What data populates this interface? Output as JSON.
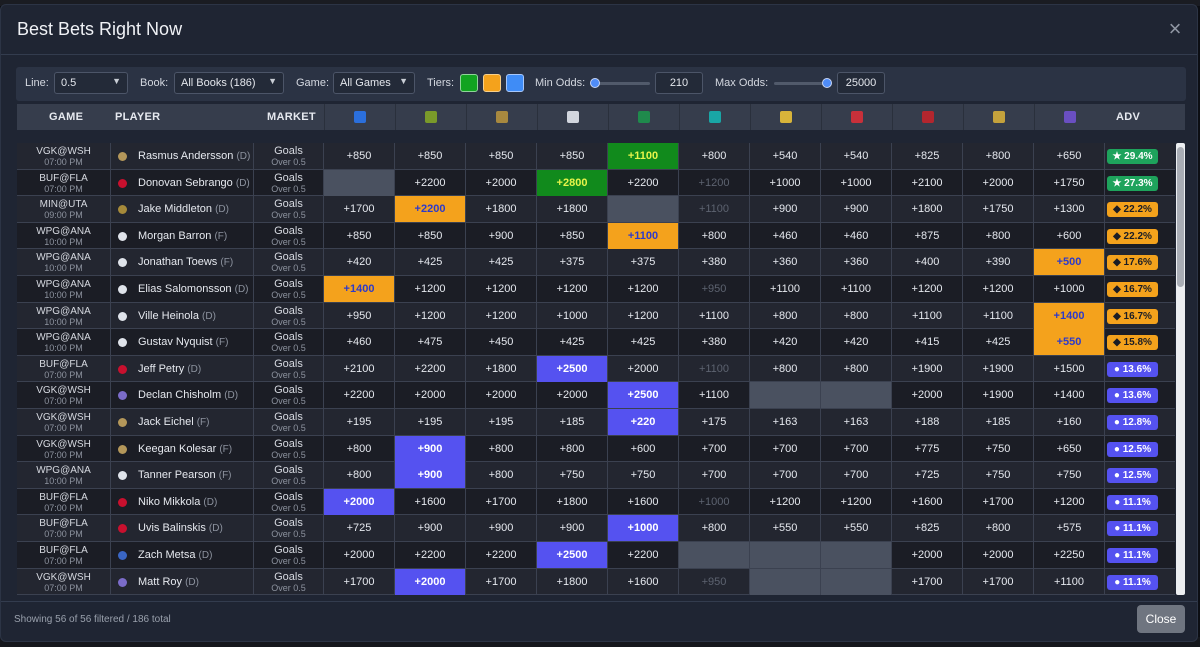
{
  "modal": {
    "title": "Best Bets Right Now",
    "close_icon": "close-icon",
    "status": "Showing 56 of 56 filtered / 186 total",
    "close_label": "Close"
  },
  "filters": {
    "line_label": "Line:",
    "line_value": "0.5",
    "book_label": "Book:",
    "book_value": "All Books (186)",
    "game_label": "Game:",
    "game_value": "All Games",
    "tiers_label": "Tiers:",
    "tiers": [
      {
        "name": "green-tier",
        "color": "#11a321"
      },
      {
        "name": "orange-tier",
        "color": "#f4a21c"
      },
      {
        "name": "blue-tier",
        "color": "#3f8cf6"
      }
    ],
    "min_odds_label": "Min Odds:",
    "min_odds_value": "210",
    "min_slider_level": 0,
    "max_odds_label": "Max Odds:",
    "max_odds_value": "25000",
    "max_slider_level": 1
  },
  "columns": {
    "game": "GAME",
    "player": "PLAYER",
    "market": "MARKET",
    "adv": "ADV",
    "books": [
      {
        "icon": "fanduel-icon",
        "color": "#2b6fdc"
      },
      {
        "icon": "draftkings-icon",
        "color": "#7a9a2a"
      },
      {
        "icon": "betmgm-icon",
        "color": "#a8893f"
      },
      {
        "icon": "caesars-icon",
        "color": "#d2d6de"
      },
      {
        "icon": "bet365-icon",
        "color": "#1f8a4c"
      },
      {
        "icon": "espnbet-icon",
        "color": "#19a6a6"
      },
      {
        "icon": "betrivers-icon",
        "color": "#d8b43a"
      },
      {
        "icon": "fanatics-icon",
        "color": "#c8303a"
      },
      {
        "icon": "betway-icon",
        "color": "#b3262e"
      },
      {
        "icon": "hardrock-icon",
        "color": "#c4a23c"
      },
      {
        "icon": "pointsbet-icon",
        "color": "#6a4fc1"
      }
    ]
  },
  "rows": [
    {
      "game": "VGK@WSH",
      "time": "07:00 PM",
      "team_color": "#b4975a",
      "player": "Rasmus Andersson",
      "pos": "(D)",
      "market": "Goals",
      "line": "Over 0.5",
      "odds": [
        "+850",
        "+850",
        "+850",
        "+850",
        "+1100",
        "+800",
        "+540",
        "+540",
        "+825",
        "+800",
        "+650"
      ],
      "styles": [
        "",
        "",
        "",
        "",
        "green",
        "",
        "",
        "",
        "",
        "",
        ""
      ],
      "adv": "★ 29.4%",
      "tier": "green"
    },
    {
      "game": "BUF@FLA",
      "time": "07:00 PM",
      "team_color": "#c8102e",
      "player": "Donovan Sebrango",
      "pos": "(D)",
      "market": "Goals",
      "line": "Over 0.5",
      "odds": [
        "",
        "+2200",
        "+2000",
        "+2800",
        "+2200",
        "+1200",
        "+1000",
        "+1000",
        "+2100",
        "+2000",
        "+1750"
      ],
      "styles": [
        "empty",
        "",
        "",
        "green",
        "",
        "dim",
        "",
        "",
        "",
        "",
        ""
      ],
      "adv": "★ 27.3%",
      "tier": "green"
    },
    {
      "game": "MIN@UTA",
      "time": "09:00 PM",
      "team_color": "#a68a3a",
      "player": "Jake Middleton",
      "pos": "(D)",
      "market": "Goals",
      "line": "Over 0.5",
      "odds": [
        "+1700",
        "+2200",
        "+1800",
        "+1800",
        "",
        "+1100",
        "+900",
        "+900",
        "+1800",
        "+1750",
        "+1300"
      ],
      "styles": [
        "",
        "orange",
        "",
        "",
        "empty",
        "dim",
        "",
        "",
        "",
        "",
        ""
      ],
      "adv": "◆ 22.2%",
      "tier": "orange"
    },
    {
      "game": "WPG@ANA",
      "time": "10:00 PM",
      "team_color": "#dfe3ea",
      "player": "Morgan Barron",
      "pos": "(F)",
      "market": "Goals",
      "line": "Over 0.5",
      "odds": [
        "+850",
        "+850",
        "+900",
        "+850",
        "+1100",
        "+800",
        "+460",
        "+460",
        "+875",
        "+800",
        "+600"
      ],
      "styles": [
        "",
        "",
        "",
        "",
        "orange",
        "",
        "",
        "",
        "",
        "",
        ""
      ],
      "adv": "◆ 22.2%",
      "tier": "orange"
    },
    {
      "game": "WPG@ANA",
      "time": "10:00 PM",
      "team_color": "#dfe3ea",
      "player": "Jonathan Toews",
      "pos": "(F)",
      "market": "Goals",
      "line": "Over 0.5",
      "odds": [
        "+420",
        "+425",
        "+425",
        "+375",
        "+375",
        "+380",
        "+360",
        "+360",
        "+400",
        "+390",
        "+500"
      ],
      "styles": [
        "",
        "",
        "",
        "",
        "",
        "",
        "",
        "",
        "",
        "",
        "orange"
      ],
      "adv": "◆ 17.6%",
      "tier": "orange"
    },
    {
      "game": "WPG@ANA",
      "time": "10:00 PM",
      "team_color": "#dfe3ea",
      "player": "Elias Salomonsson",
      "pos": "(D)",
      "market": "Goals",
      "line": "Over 0.5",
      "odds": [
        "+1400",
        "+1200",
        "+1200",
        "+1200",
        "+1200",
        "+950",
        "+1100",
        "+1100",
        "+1200",
        "+1200",
        "+1000"
      ],
      "styles": [
        "orange",
        "",
        "",
        "",
        "",
        "dim",
        "",
        "",
        "",
        "",
        ""
      ],
      "adv": "◆ 16.7%",
      "tier": "orange"
    },
    {
      "game": "WPG@ANA",
      "time": "10:00 PM",
      "team_color": "#dfe3ea",
      "player": "Ville Heinola",
      "pos": "(D)",
      "market": "Goals",
      "line": "Over 0.5",
      "odds": [
        "+950",
        "+1200",
        "+1200",
        "+1000",
        "+1200",
        "+1100",
        "+800",
        "+800",
        "+1100",
        "+1100",
        "+1400"
      ],
      "styles": [
        "",
        "",
        "",
        "",
        "",
        "",
        "",
        "",
        "",
        "",
        "orange"
      ],
      "adv": "◆ 16.7%",
      "tier": "orange"
    },
    {
      "game": "WPG@ANA",
      "time": "10:00 PM",
      "team_color": "#dfe3ea",
      "player": "Gustav Nyquist",
      "pos": "(F)",
      "market": "Goals",
      "line": "Over 0.5",
      "odds": [
        "+460",
        "+475",
        "+450",
        "+425",
        "+425",
        "+380",
        "+420",
        "+420",
        "+415",
        "+425",
        "+550"
      ],
      "styles": [
        "",
        "",
        "",
        "",
        "",
        "",
        "",
        "",
        "",
        "",
        "orange"
      ],
      "adv": "◆ 15.8%",
      "tier": "orange"
    },
    {
      "game": "BUF@FLA",
      "time": "07:00 PM",
      "team_color": "#c8102e",
      "player": "Jeff Petry",
      "pos": "(D)",
      "market": "Goals",
      "line": "Over 0.5",
      "odds": [
        "+2100",
        "+2200",
        "+1800",
        "+2500",
        "+2000",
        "+1100",
        "+800",
        "+800",
        "+1900",
        "+1900",
        "+1500"
      ],
      "styles": [
        "",
        "",
        "",
        "blue",
        "",
        "dim",
        "",
        "",
        "",
        "",
        ""
      ],
      "adv": "● 13.6%",
      "tier": "blue"
    },
    {
      "game": "VGK@WSH",
      "time": "07:00 PM",
      "team_color": "#7b6cc9",
      "player": "Declan Chisholm",
      "pos": "(D)",
      "market": "Goals",
      "line": "Over 0.5",
      "odds": [
        "+2200",
        "+2000",
        "+2000",
        "+2000",
        "+2500",
        "+1100",
        "",
        "",
        "+2000",
        "+1900",
        "+1400"
      ],
      "styles": [
        "",
        "",
        "",
        "",
        "blue",
        "",
        "empty",
        "empty",
        "",
        "",
        ""
      ],
      "adv": "● 13.6%",
      "tier": "blue"
    },
    {
      "game": "VGK@WSH",
      "time": "07:00 PM",
      "team_color": "#b4975a",
      "player": "Jack Eichel",
      "pos": "(F)",
      "market": "Goals",
      "line": "Over 0.5",
      "odds": [
        "+195",
        "+195",
        "+195",
        "+185",
        "+220",
        "+175",
        "+163",
        "+163",
        "+188",
        "+185",
        "+160"
      ],
      "styles": [
        "",
        "",
        "",
        "",
        "blue",
        "",
        "",
        "",
        "",
        "",
        ""
      ],
      "adv": "● 12.8%",
      "tier": "blue"
    },
    {
      "game": "VGK@WSH",
      "time": "07:00 PM",
      "team_color": "#b4975a",
      "player": "Keegan Kolesar",
      "pos": "(F)",
      "market": "Goals",
      "line": "Over 0.5",
      "odds": [
        "+800",
        "+900",
        "+800",
        "+800",
        "+600",
        "+700",
        "+700",
        "+700",
        "+775",
        "+750",
        "+650"
      ],
      "styles": [
        "",
        "blue",
        "",
        "",
        "",
        "",
        "",
        "",
        "",
        "",
        ""
      ],
      "adv": "● 12.5%",
      "tier": "blue"
    },
    {
      "game": "WPG@ANA",
      "time": "10:00 PM",
      "team_color": "#dfe3ea",
      "player": "Tanner Pearson",
      "pos": "(F)",
      "market": "Goals",
      "line": "Over 0.5",
      "odds": [
        "+800",
        "+900",
        "+800",
        "+750",
        "+750",
        "+700",
        "+700",
        "+700",
        "+725",
        "+750",
        "+750"
      ],
      "styles": [
        "",
        "blue",
        "",
        "",
        "",
        "",
        "",
        "",
        "",
        "",
        ""
      ],
      "adv": "● 12.5%",
      "tier": "blue"
    },
    {
      "game": "BUF@FLA",
      "time": "07:00 PM",
      "team_color": "#c8102e",
      "player": "Niko Mikkola",
      "pos": "(D)",
      "market": "Goals",
      "line": "Over 0.5",
      "odds": [
        "+2000",
        "+1600",
        "+1700",
        "+1800",
        "+1600",
        "+1000",
        "+1200",
        "+1200",
        "+1600",
        "+1700",
        "+1200"
      ],
      "styles": [
        "blue",
        "",
        "",
        "",
        "",
        "dim",
        "",
        "",
        "",
        "",
        ""
      ],
      "adv": "● 11.1%",
      "tier": "blue"
    },
    {
      "game": "BUF@FLA",
      "time": "07:00 PM",
      "team_color": "#c8102e",
      "player": "Uvis Balinskis",
      "pos": "(D)",
      "market": "Goals",
      "line": "Over 0.5",
      "odds": [
        "+725",
        "+900",
        "+900",
        "+900",
        "+1000",
        "+800",
        "+550",
        "+550",
        "+825",
        "+800",
        "+575"
      ],
      "styles": [
        "",
        "",
        "",
        "",
        "blue",
        "",
        "",
        "",
        "",
        "",
        ""
      ],
      "adv": "● 11.1%",
      "tier": "blue"
    },
    {
      "game": "BUF@FLA",
      "time": "07:00 PM",
      "team_color": "#3a66c4",
      "player": "Zach Metsa",
      "pos": "(D)",
      "market": "Goals",
      "line": "Over 0.5",
      "odds": [
        "+2000",
        "+2200",
        "+2200",
        "+2500",
        "+2200",
        "",
        "",
        "",
        "+2000",
        "+2000",
        "+2250"
      ],
      "styles": [
        "",
        "",
        "",
        "blue",
        "",
        "empty",
        "empty",
        "empty",
        "",
        "",
        ""
      ],
      "adv": "● 11.1%",
      "tier": "blue"
    },
    {
      "game": "VGK@WSH",
      "time": "07:00 PM",
      "team_color": "#7b6cc9",
      "player": "Matt Roy",
      "pos": "(D)",
      "market": "Goals",
      "line": "Over 0.5",
      "odds": [
        "+1700",
        "+2000",
        "+1700",
        "+1800",
        "+1600",
        "+950",
        "",
        "",
        "+1700",
        "+1700",
        "+1100"
      ],
      "styles": [
        "",
        "blue",
        "",
        "",
        "",
        "dim",
        "empty",
        "empty",
        "",
        "",
        ""
      ],
      "adv": "● 11.1%",
      "tier": "blue"
    }
  ]
}
